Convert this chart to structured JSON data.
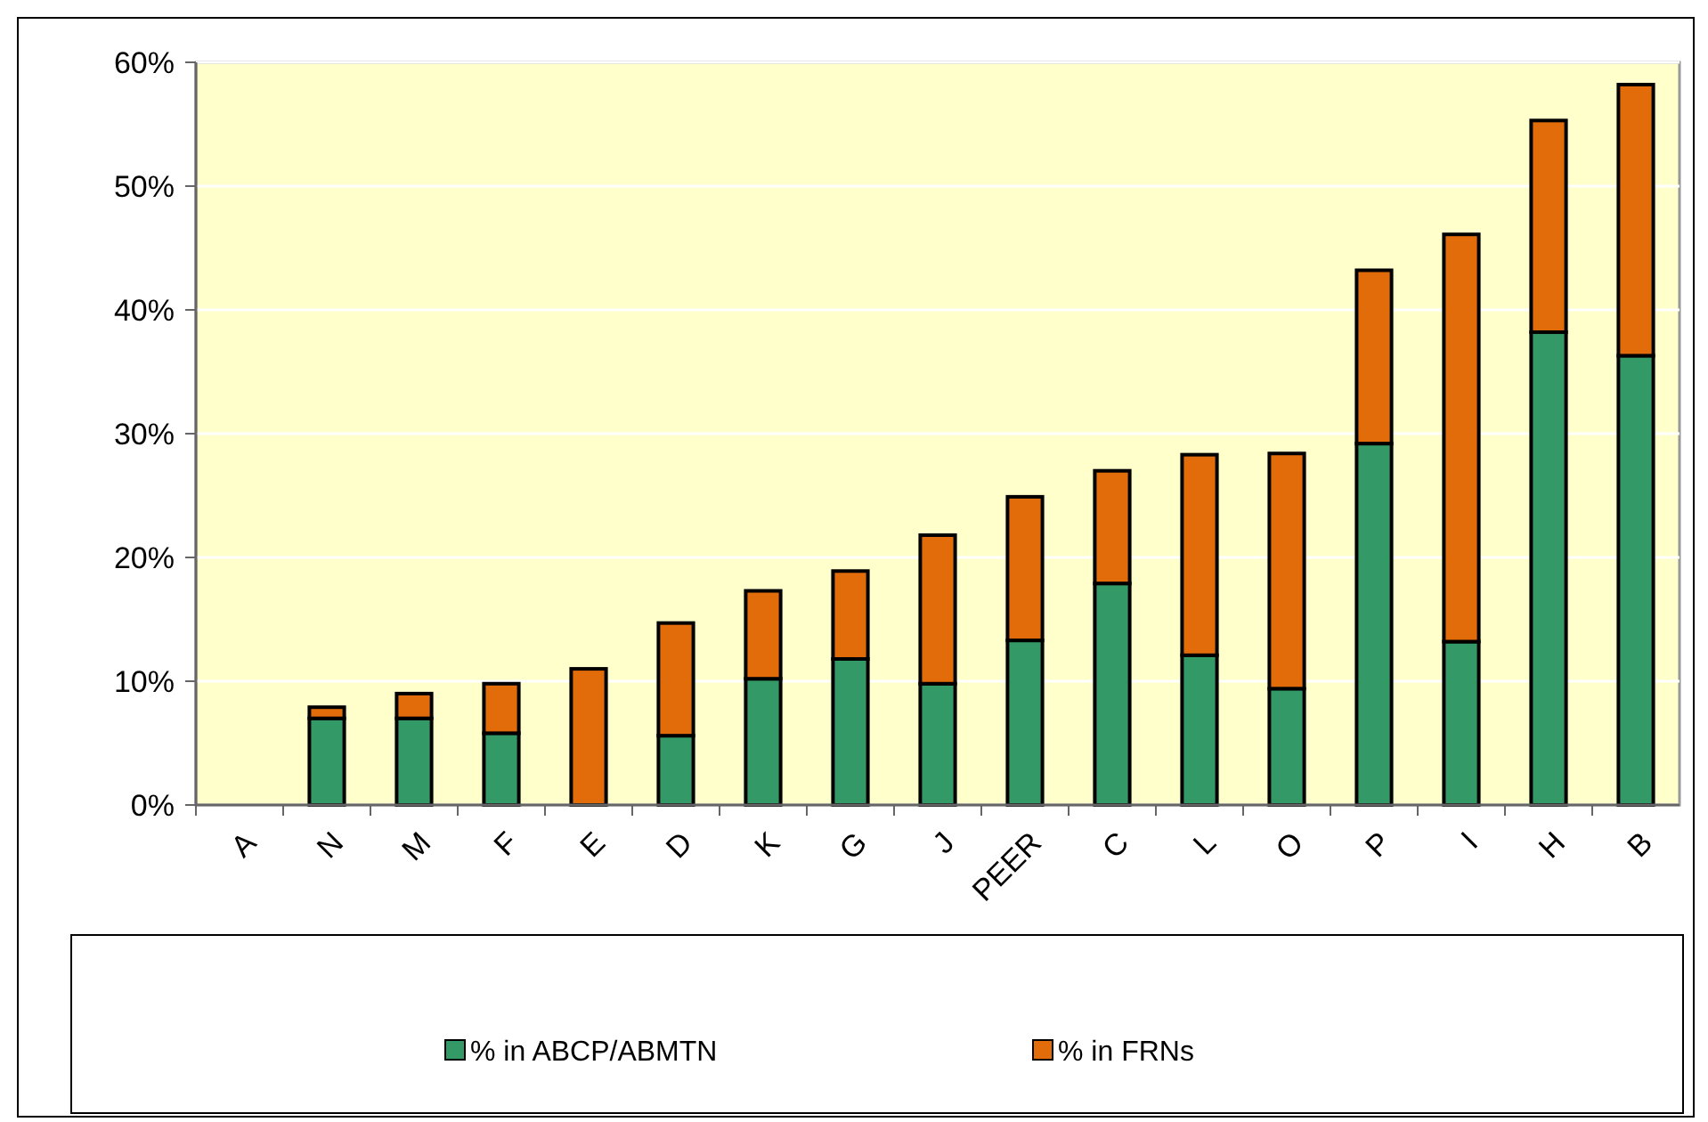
{
  "chart_data": {
    "type": "bar",
    "stacked": true,
    "categories": [
      "A",
      "N",
      "M",
      "F",
      "E",
      "D",
      "K",
      "G",
      "J",
      "PEER",
      "C",
      "L",
      "O",
      "P",
      "I",
      "H",
      "B"
    ],
    "series": [
      {
        "name": "% in ABCP/ABMTN",
        "color": "#339966",
        "values": [
          0,
          7.0,
          7.0,
          5.8,
          0,
          5.6,
          10.2,
          11.8,
          9.8,
          13.3,
          17.9,
          12.1,
          9.4,
          29.2,
          13.2,
          38.2,
          36.3
        ]
      },
      {
        "name": "% in FRNs",
        "color": "#e36c0a",
        "values": [
          0,
          0.9,
          2.0,
          4.0,
          11.0,
          9.1,
          7.1,
          7.1,
          12.0,
          11.6,
          9.1,
          16.2,
          19.0,
          14.0,
          32.9,
          17.1,
          21.9
        ]
      }
    ],
    "ylim": [
      0,
      60
    ],
    "yticks": [
      {
        "value": 0,
        "label": "0%"
      },
      {
        "value": 10,
        "label": "10%"
      },
      {
        "value": 20,
        "label": "20%"
      },
      {
        "value": 30,
        "label": "30%"
      },
      {
        "value": 40,
        "label": "40%"
      },
      {
        "value": 50,
        "label": "50%"
      },
      {
        "value": 60,
        "label": "60%"
      }
    ],
    "grid": "y",
    "legend": "bottom"
  }
}
